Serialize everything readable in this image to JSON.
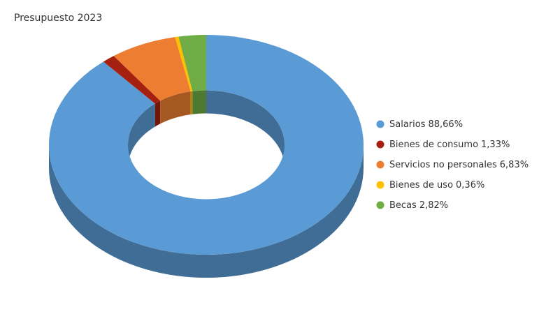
{
  "chart_data": {
    "type": "donut",
    "title": "Presupuesto 2023",
    "categories": [
      "Salarios",
      "Bienes de consumo",
      "Servicios no personales",
      "Bienes de uso",
      "Becas"
    ],
    "values": [
      88.66,
      1.33,
      6.83,
      0.36,
      2.82
    ],
    "value_labels": [
      "88,66%",
      "1,33%",
      "6,83%",
      "0,36%",
      "2,82%"
    ],
    "colors": [
      "#5b9bd5",
      "#a52010",
      "#ed7d31",
      "#ffc000",
      "#70ad47"
    ],
    "legend": "right"
  }
}
